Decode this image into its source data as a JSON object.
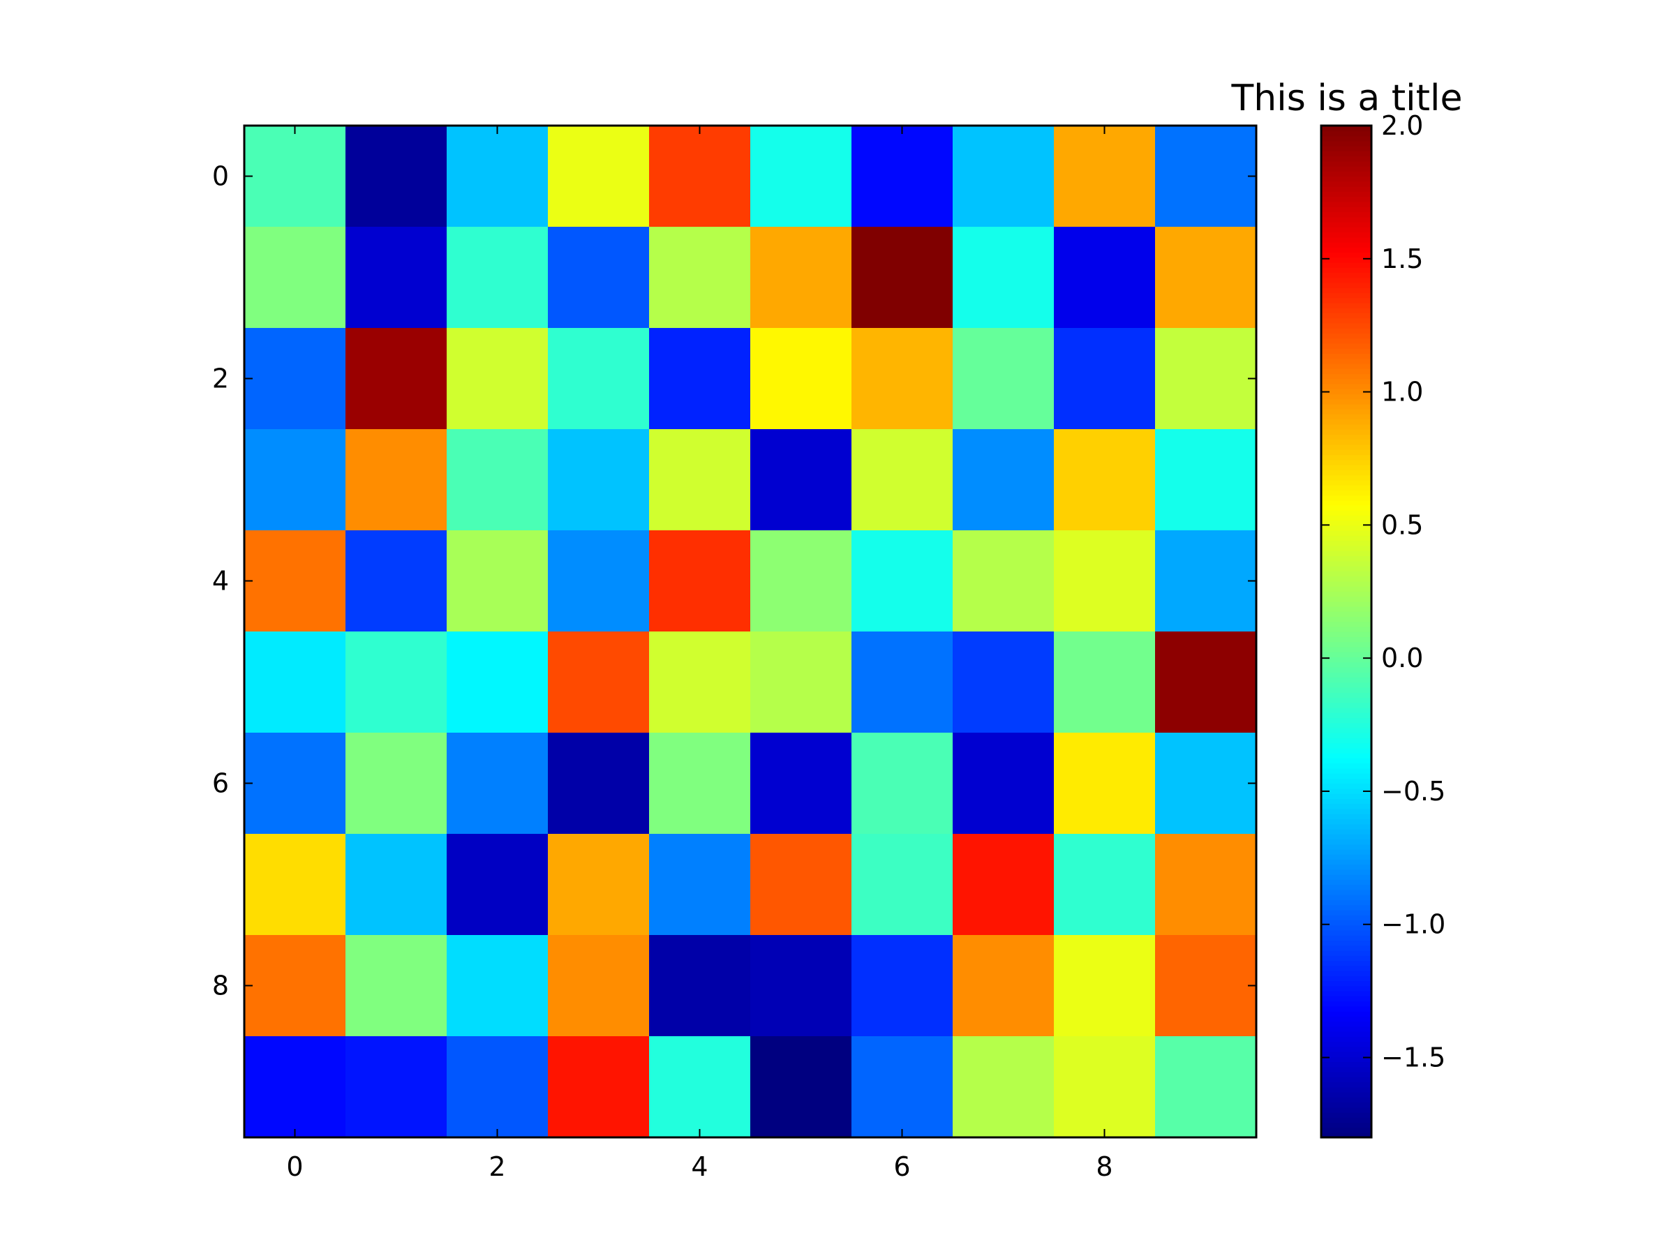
{
  "chart_data": {
    "type": "heatmap",
    "title": "This is a title",
    "colormap": "jet",
    "x": {
      "ticks": [
        0,
        2,
        4,
        6,
        8
      ],
      "tick_labels": [
        "0",
        "2",
        "4",
        "6",
        "8"
      ],
      "lim": [
        -0.5,
        9.5
      ]
    },
    "y": {
      "ticks": [
        0,
        2,
        4,
        6,
        8
      ],
      "tick_labels": [
        "0",
        "2",
        "4",
        "6",
        "8"
      ],
      "lim": [
        9.5,
        -0.5
      ]
    },
    "colorbar": {
      "vmin": -1.8,
      "vmax": 2.0,
      "ticks": [
        -1.5,
        -1.0,
        -0.5,
        0.0,
        0.5,
        1.0,
        1.5,
        2.0
      ],
      "tick_labels": [
        "−1.5",
        "−1.0",
        "−0.5",
        "0.0",
        "0.5",
        "1.0",
        "1.5",
        "2.0"
      ]
    },
    "values": [
      [
        -0.1,
        -1.7,
        -0.6,
        0.5,
        1.3,
        -0.3,
        -1.3,
        -0.6,
        0.9,
        -0.9
      ],
      [
        0.1,
        -1.5,
        -0.2,
        -1.0,
        0.3,
        0.9,
        2.0,
        -0.3,
        -1.4,
        0.9
      ],
      [
        -0.95,
        1.9,
        0.4,
        -0.2,
        -1.2,
        0.6,
        0.85,
        0.0,
        -1.15,
        0.35
      ],
      [
        -0.8,
        1.0,
        -0.1,
        -0.6,
        0.4,
        -1.5,
        0.4,
        -0.8,
        0.75,
        -0.3
      ],
      [
        1.1,
        -1.1,
        0.25,
        -0.8,
        1.35,
        0.15,
        -0.3,
        0.3,
        0.45,
        -0.7
      ],
      [
        -0.45,
        -0.2,
        -0.4,
        1.25,
        0.4,
        0.3,
        -0.9,
        -1.1,
        0.05,
        1.95
      ],
      [
        -0.9,
        0.1,
        -0.85,
        -1.65,
        0.1,
        -1.5,
        -0.1,
        -1.5,
        0.65,
        -0.6
      ],
      [
        0.7,
        -0.6,
        -1.55,
        0.9,
        -0.85,
        1.2,
        -0.15,
        1.45,
        -0.2,
        1.0
      ],
      [
        1.1,
        0.1,
        -0.5,
        1.0,
        -1.65,
        -1.6,
        -1.15,
        1.0,
        0.5,
        1.15
      ],
      [
        -1.3,
        -1.25,
        -1.0,
        1.45,
        -0.25,
        -1.8,
        -0.95,
        0.3,
        0.45,
        -0.05
      ]
    ]
  }
}
